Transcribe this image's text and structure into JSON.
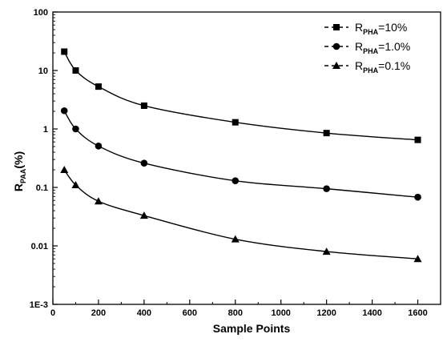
{
  "chart_data": {
    "type": "line",
    "xlabel": "Sample Points",
    "ylabel_main": "R",
    "ylabel_sub": "PAA",
    "ylabel_unit": "(%)",
    "yscale": "log",
    "xlim": [
      0,
      1700
    ],
    "ylim": [
      0.001,
      100
    ],
    "x_ticks": [
      0,
      200,
      400,
      600,
      800,
      1000,
      1200,
      1400,
      1600
    ],
    "x_tick_labels": [
      "0",
      "200",
      "400",
      "600",
      "800",
      "1000",
      "1200",
      "1400",
      "1600"
    ],
    "y_ticks": [
      0.001,
      0.01,
      0.1,
      1,
      10,
      100
    ],
    "y_tick_labels": [
      "1E-3",
      "0.01",
      "0.1",
      "1",
      "10",
      "100"
    ],
    "x": [
      50,
      100,
      200,
      400,
      800,
      1200,
      1600
    ],
    "legend_position": "top-right",
    "series": [
      {
        "name_main": "R",
        "name_sub": "PHA",
        "name_rest": "=10%",
        "marker": "square",
        "values": [
          21,
          10,
          5.3,
          2.5,
          1.3,
          0.85,
          0.65
        ]
      },
      {
        "name_main": "R",
        "name_sub": "PHA",
        "name_rest": "=1.0%",
        "marker": "circle",
        "values": [
          2.05,
          1.0,
          0.51,
          0.26,
          0.13,
          0.095,
          0.068
        ]
      },
      {
        "name_main": "R",
        "name_sub": "PHA",
        "name_rest": "=0.1%",
        "marker": "triangle",
        "values": [
          0.2,
          0.11,
          0.058,
          0.033,
          0.013,
          0.008,
          0.006
        ]
      }
    ]
  }
}
